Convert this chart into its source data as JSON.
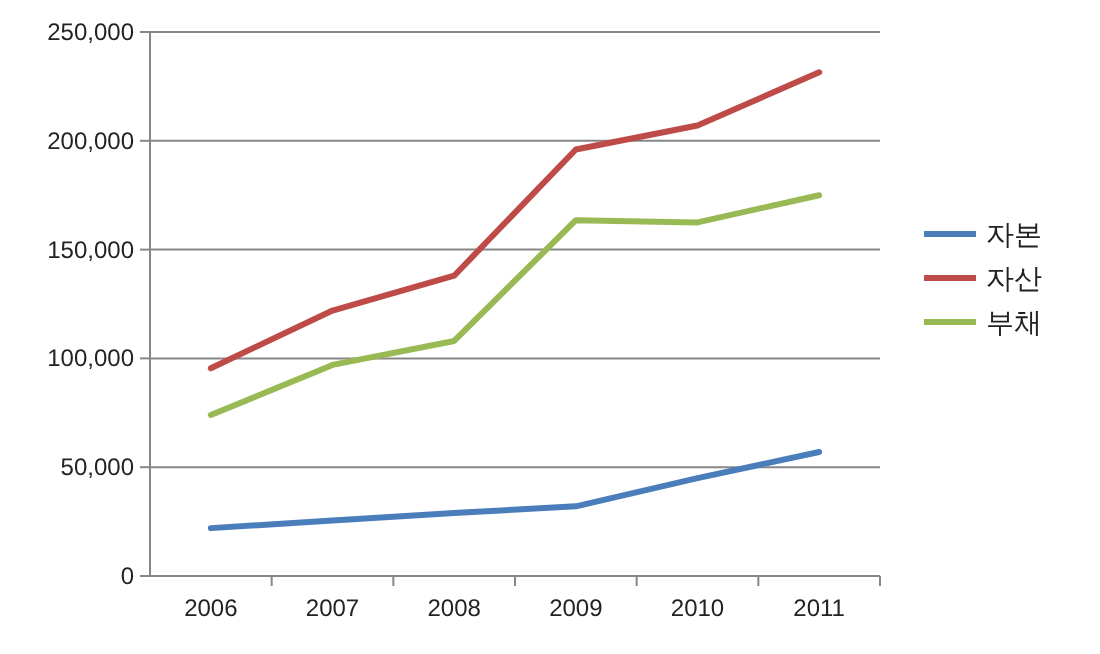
{
  "chart_data": {
    "type": "line",
    "categories": [
      "2006",
      "2007",
      "2008",
      "2009",
      "2010",
      "2011"
    ],
    "series": [
      {
        "name": "자본",
        "color": "#4a7ebb",
        "values": [
          22000,
          25500,
          29000,
          32000,
          45000,
          57000
        ]
      },
      {
        "name": "자산",
        "color": "#be4b48",
        "values": [
          95500,
          122000,
          138000,
          196000,
          207000,
          231500
        ]
      },
      {
        "name": "부채",
        "color": "#98b954",
        "values": [
          74000,
          97000,
          108000,
          163500,
          162500,
          175000
        ]
      }
    ],
    "ylim": [
      0,
      250000
    ],
    "yticks": [
      {
        "value": 0,
        "label": "0"
      },
      {
        "value": 50000,
        "label": "50,000"
      },
      {
        "value": 100000,
        "label": "100,000"
      },
      {
        "value": 150000,
        "label": "150,000"
      },
      {
        "value": 200000,
        "label": "200,000"
      },
      {
        "value": 250000,
        "label": "250,000"
      }
    ],
    "grid": "y",
    "legend": "right",
    "marker": "none",
    "line_style": "solid"
  }
}
